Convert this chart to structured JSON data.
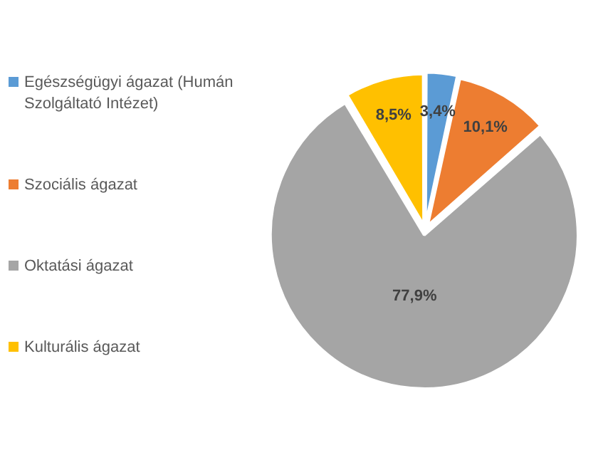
{
  "chart_data": {
    "type": "pie",
    "categories": [
      "Egészségügyi ágazat (Humán Szolgáltató Intézet)",
      "Szociális ágazat",
      "Oktatási ágazat",
      "Kulturális ágazat"
    ],
    "values": [
      3.4,
      10.1,
      77.9,
      8.5
    ],
    "value_labels": [
      "3,4%",
      "10,1%",
      "77,9%",
      "8,5%"
    ],
    "colors": [
      "#5b9bd5",
      "#ed7d31",
      "#a5a5a5",
      "#ffc000"
    ],
    "legend": "left"
  }
}
